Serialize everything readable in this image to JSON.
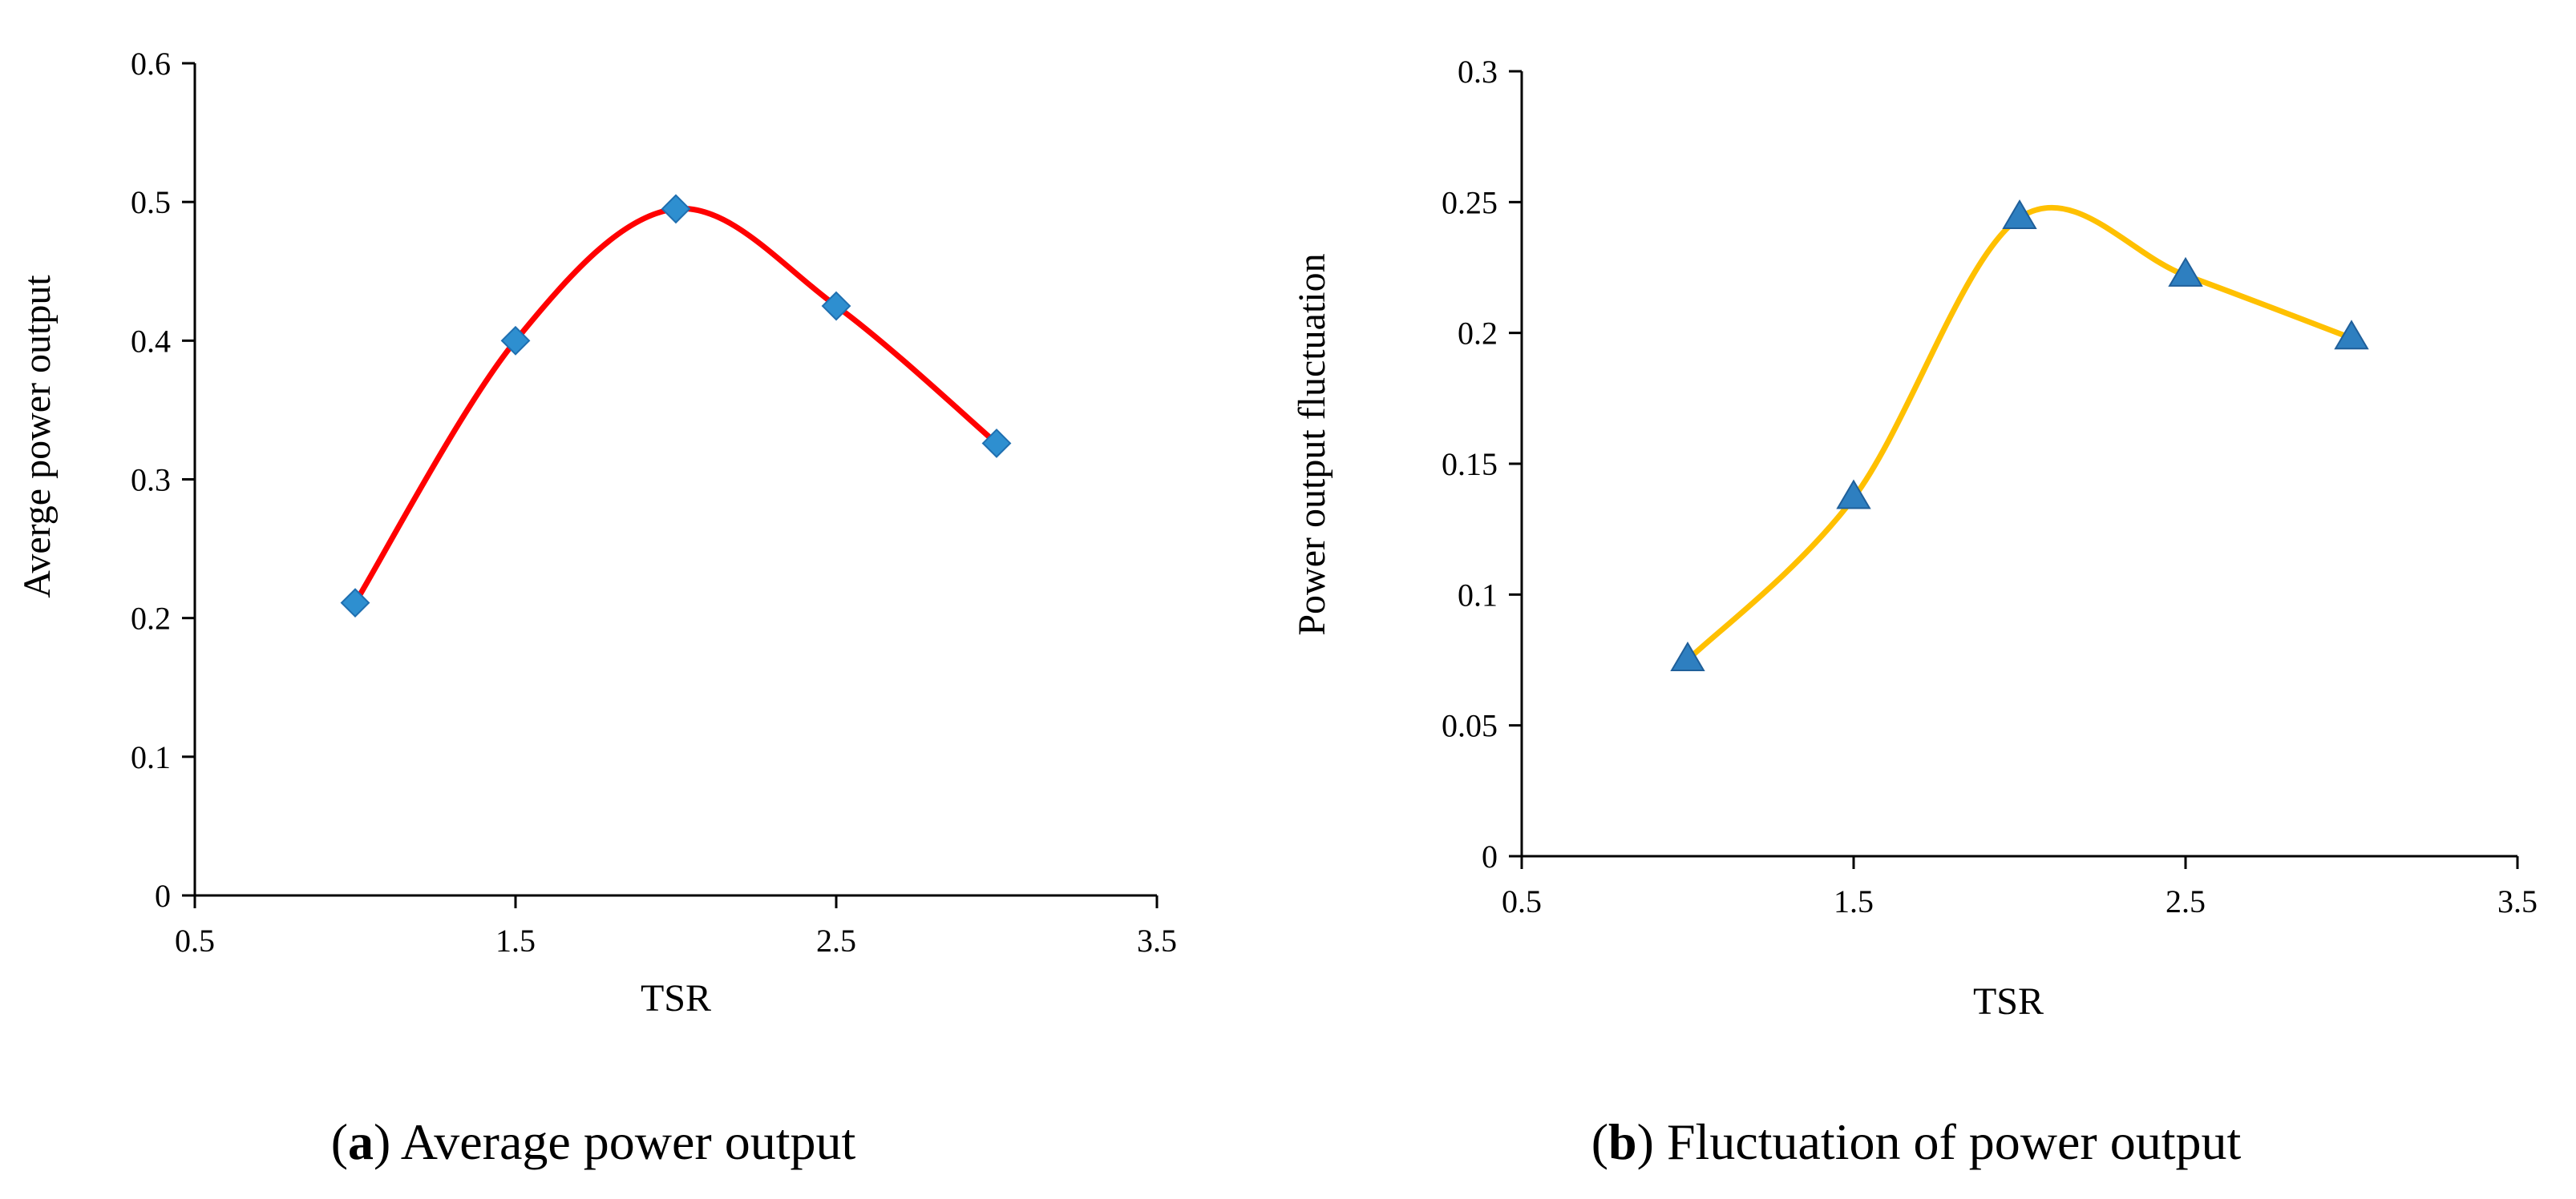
{
  "chart_data": [
    {
      "type": "line",
      "panel": "a",
      "caption_letter": "a",
      "caption_text": "Average power output",
      "xlabel": "TSR",
      "ylabel": "Averge power output",
      "xlim": [
        0.5,
        3.5
      ],
      "ylim": [
        0,
        0.6
      ],
      "xticks": [
        "0.5",
        "1.5",
        "2.5",
        "3.5"
      ],
      "xtick_values": [
        0.5,
        1.5,
        2.5,
        3.5
      ],
      "yticks": [
        "0",
        "0.1",
        "0.2",
        "0.3",
        "0.4",
        "0.5",
        "0.6"
      ],
      "ytick_values": [
        0,
        0.1,
        0.2,
        0.3,
        0.4,
        0.5,
        0.6
      ],
      "series": [
        {
          "name": "Average power output",
          "x": [
            1.0,
            1.5,
            2.0,
            2.5,
            3.0
          ],
          "y": [
            0.211,
            0.4,
            0.495,
            0.425,
            0.326
          ],
          "line_color": "#ff0000",
          "marker": "diamond",
          "marker_color": "#2e8fd0",
          "smooth": true
        }
      ]
    },
    {
      "type": "line",
      "panel": "b",
      "caption_letter": "b",
      "caption_text": "Fluctuation of power output",
      "xlabel": "TSR",
      "ylabel": "Power output fluctuation",
      "xlim": [
        0.5,
        3.5
      ],
      "ylim": [
        0,
        0.3
      ],
      "xticks": [
        "0.5",
        "1.5",
        "2.5",
        "3.5"
      ],
      "xtick_values": [
        0.5,
        1.5,
        2.5,
        3.5
      ],
      "yticks": [
        "0",
        "0.05",
        "0.1",
        "0.15",
        "0.2",
        "0.25",
        "0.3"
      ],
      "ytick_values": [
        0,
        0.05,
        0.1,
        0.15,
        0.2,
        0.25,
        0.3
      ],
      "series": [
        {
          "name": "Power output fluctuation",
          "x": [
            1.0,
            1.5,
            2.0,
            2.5,
            3.0
          ],
          "y": [
            0.075,
            0.137,
            0.244,
            0.222,
            0.198
          ],
          "line_color": "#ffc000",
          "marker": "triangle",
          "marker_color": "#2e7fc0",
          "smooth": true
        }
      ]
    }
  ]
}
